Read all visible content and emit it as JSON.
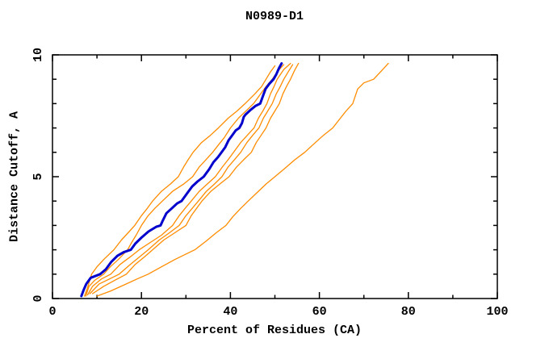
{
  "chart": {
    "title": "N0989-D1",
    "xlabel": "Percent of Residues (CA)",
    "ylabel": "Distance Cutoff, A"
  },
  "chart_data": {
    "type": "line",
    "title": "N0989-D1",
    "xlabel": "Percent of Residues (CA)",
    "ylabel": "Distance Cutoff, A",
    "xlim": [
      0,
      100
    ],
    "ylim": [
      0,
      10
    ],
    "x_major_ticks": [
      0,
      20,
      40,
      60,
      80,
      100
    ],
    "x_minor_step": 10,
    "y_major_ticks": [
      0,
      5,
      10
    ],
    "y_minor_step": 1,
    "grid": false,
    "legend": "none",
    "colors": {
      "highlight_series": "#0000cd",
      "other_series": "#ff8c00",
      "axis": "#000000",
      "background": "#ffffff"
    },
    "series": [
      {
        "name": "orange-1",
        "color": "#ff8c00",
        "width": 1.3,
        "points": [
          [
            7.2,
            0.1
          ],
          [
            7.8,
            0.4
          ],
          [
            8.8,
            1
          ],
          [
            10,
            1.3
          ],
          [
            11.5,
            1.6
          ],
          [
            13.8,
            2
          ],
          [
            15.5,
            2.4
          ],
          [
            17,
            2.7
          ],
          [
            18.5,
            3
          ],
          [
            20,
            3.4
          ],
          [
            21.3,
            3.7
          ],
          [
            22.5,
            4
          ],
          [
            24.5,
            4.4
          ],
          [
            26.5,
            4.7
          ],
          [
            28.3,
            5
          ],
          [
            29.5,
            5.4
          ],
          [
            30.5,
            5.7
          ],
          [
            31.6,
            6
          ],
          [
            33.5,
            6.4
          ],
          [
            35.5,
            6.7
          ],
          [
            37.3,
            7
          ],
          [
            39.5,
            7.4
          ],
          [
            41.5,
            7.7
          ],
          [
            43.3,
            8
          ],
          [
            45.5,
            8.4
          ],
          [
            47,
            8.7
          ],
          [
            48,
            9
          ],
          [
            49,
            9.3
          ],
          [
            50,
            9.55
          ]
        ]
      },
      {
        "name": "orange-2",
        "color": "#ff8c00",
        "width": 1.3,
        "points": [
          [
            7.5,
            0.1
          ],
          [
            8.2,
            0.5
          ],
          [
            9.5,
            0.75
          ],
          [
            11.5,
            1
          ],
          [
            13,
            1.3
          ],
          [
            14.8,
            1.6
          ],
          [
            16.9,
            2
          ],
          [
            17.8,
            2.3
          ],
          [
            18.8,
            2.6
          ],
          [
            20,
            3
          ],
          [
            21.5,
            3.4
          ],
          [
            23,
            3.7
          ],
          [
            24.7,
            4
          ],
          [
            27,
            4.4
          ],
          [
            29.5,
            4.7
          ],
          [
            31.5,
            5
          ],
          [
            33,
            5.4
          ],
          [
            34.5,
            5.7
          ],
          [
            36,
            6
          ],
          [
            37.3,
            6.3
          ],
          [
            38.6,
            6.6
          ],
          [
            40,
            7
          ],
          [
            41.8,
            7.4
          ],
          [
            43.5,
            7.7
          ],
          [
            45.2,
            8
          ],
          [
            46.8,
            8.4
          ],
          [
            48,
            8.7
          ],
          [
            49.4,
            9
          ],
          [
            50.5,
            9.3
          ],
          [
            52,
            9.6
          ]
        ]
      },
      {
        "name": "orange-3",
        "color": "#ff8c00",
        "width": 1.3,
        "points": [
          [
            7.9,
            0.15
          ],
          [
            9,
            0.5
          ],
          [
            11,
            0.8
          ],
          [
            13.1,
            1
          ],
          [
            15.2,
            1.4
          ],
          [
            17.4,
            1.7
          ],
          [
            19.5,
            2
          ],
          [
            22,
            2.3
          ],
          [
            24.5,
            2.6
          ],
          [
            27,
            3
          ],
          [
            28.5,
            3.4
          ],
          [
            29.8,
            3.7
          ],
          [
            31.2,
            4
          ],
          [
            33,
            4.4
          ],
          [
            34.8,
            4.7
          ],
          [
            36.6,
            5
          ],
          [
            38.2,
            5.4
          ],
          [
            39.5,
            5.7
          ],
          [
            40.7,
            6
          ],
          [
            42.3,
            6.4
          ],
          [
            43.8,
            6.7
          ],
          [
            45.3,
            7
          ],
          [
            46.3,
            7.4
          ],
          [
            47.3,
            7.7
          ],
          [
            48.2,
            8
          ],
          [
            49,
            8.4
          ],
          [
            49.8,
            8.7
          ],
          [
            50.5,
            9
          ],
          [
            52,
            9.4
          ],
          [
            53.5,
            9.65
          ]
        ]
      },
      {
        "name": "orange-4",
        "color": "#ff8c00",
        "width": 1.3,
        "points": [
          [
            8.4,
            0.2
          ],
          [
            10.5,
            0.6
          ],
          [
            12.8,
            0.8
          ],
          [
            15,
            1
          ],
          [
            17.5,
            1.4
          ],
          [
            19.5,
            1.7
          ],
          [
            21.5,
            2
          ],
          [
            24,
            2.4
          ],
          [
            26.3,
            2.7
          ],
          [
            28.5,
            3
          ],
          [
            30,
            3.4
          ],
          [
            31.4,
            3.7
          ],
          [
            32.8,
            4
          ],
          [
            34.6,
            4.4
          ],
          [
            36.4,
            4.7
          ],
          [
            38.1,
            5
          ],
          [
            39.5,
            5.4
          ],
          [
            40.9,
            5.7
          ],
          [
            42.3,
            6
          ],
          [
            43.7,
            6.4
          ],
          [
            45,
            6.7
          ],
          [
            46.4,
            7
          ],
          [
            47.4,
            7.4
          ],
          [
            48.4,
            7.7
          ],
          [
            49.4,
            8
          ],
          [
            50.3,
            8.4
          ],
          [
            51.2,
            8.7
          ],
          [
            52,
            9
          ],
          [
            53,
            9.3
          ],
          [
            54,
            9.6
          ]
        ]
      },
      {
        "name": "orange-5",
        "color": "#ff8c00",
        "width": 1.3,
        "points": [
          [
            9,
            0.2
          ],
          [
            11.5,
            0.5
          ],
          [
            14,
            0.75
          ],
          [
            16.6,
            1
          ],
          [
            18.6,
            1.4
          ],
          [
            20.6,
            1.7
          ],
          [
            22.5,
            2
          ],
          [
            25,
            2.4
          ],
          [
            27.5,
            2.7
          ],
          [
            30,
            3
          ],
          [
            31.2,
            3.4
          ],
          [
            32.4,
            3.7
          ],
          [
            33.6,
            4
          ],
          [
            35.6,
            4.4
          ],
          [
            37.6,
            4.7
          ],
          [
            39.7,
            5
          ],
          [
            41.4,
            5.4
          ],
          [
            43,
            5.7
          ],
          [
            44.7,
            6
          ],
          [
            45.8,
            6.4
          ],
          [
            46.9,
            6.7
          ],
          [
            48,
            7
          ],
          [
            49,
            7.4
          ],
          [
            50,
            7.7
          ],
          [
            51,
            8
          ],
          [
            51.8,
            8.4
          ],
          [
            52.6,
            8.7
          ],
          [
            53.5,
            9
          ],
          [
            54.4,
            9.35
          ],
          [
            55.3,
            9.65
          ]
        ]
      },
      {
        "name": "orange-6",
        "color": "#ff8c00",
        "width": 1.3,
        "points": [
          [
            10,
            0.1
          ],
          [
            13,
            0.3
          ],
          [
            16,
            0.55
          ],
          [
            19,
            0.8
          ],
          [
            21.5,
            1
          ],
          [
            24.5,
            1.3
          ],
          [
            27.5,
            1.6
          ],
          [
            32,
            2
          ],
          [
            34.5,
            2.35
          ],
          [
            36.8,
            2.7
          ],
          [
            39,
            3
          ],
          [
            40.5,
            3.35
          ],
          [
            42.3,
            3.7
          ],
          [
            44,
            4
          ],
          [
            46,
            4.35
          ],
          [
            48,
            4.7
          ],
          [
            50,
            5
          ],
          [
            52.3,
            5.35
          ],
          [
            54.5,
            5.7
          ],
          [
            56.7,
            6
          ],
          [
            58.8,
            6.35
          ],
          [
            60.9,
            6.7
          ],
          [
            63,
            7
          ],
          [
            64.5,
            7.35
          ],
          [
            66,
            7.7
          ],
          [
            67.5,
            8
          ],
          [
            68.6,
            8.6
          ],
          [
            70,
            8.85
          ],
          [
            72.2,
            9
          ],
          [
            74,
            9.35
          ],
          [
            75.5,
            9.65
          ]
        ]
      },
      {
        "name": "blue-main",
        "color": "#0000cd",
        "width": 3,
        "points": [
          [
            6.5,
            0.1
          ],
          [
            7,
            0.35
          ],
          [
            7.6,
            0.6
          ],
          [
            8.6,
            0.85
          ],
          [
            10.7,
            1
          ],
          [
            12,
            1.2
          ],
          [
            13.2,
            1.5
          ],
          [
            14.6,
            1.75
          ],
          [
            16,
            1.9
          ],
          [
            17.6,
            2
          ],
          [
            18.6,
            2.25
          ],
          [
            20,
            2.5
          ],
          [
            21.6,
            2.75
          ],
          [
            23.4,
            2.95
          ],
          [
            24.3,
            3
          ],
          [
            24.8,
            3.2
          ],
          [
            25.6,
            3.5
          ],
          [
            26.8,
            3.7
          ],
          [
            28,
            3.9
          ],
          [
            29,
            4
          ],
          [
            30.2,
            4.3
          ],
          [
            31.4,
            4.6
          ],
          [
            32.6,
            4.8
          ],
          [
            34,
            5
          ],
          [
            35.2,
            5.3
          ],
          [
            36.2,
            5.6
          ],
          [
            37.2,
            5.8
          ],
          [
            38,
            6
          ],
          [
            38.8,
            6.2
          ],
          [
            39.6,
            6.5
          ],
          [
            40.4,
            6.7
          ],
          [
            41.2,
            6.9
          ],
          [
            42,
            7
          ],
          [
            42.6,
            7.2
          ],
          [
            43,
            7.45
          ],
          [
            43.4,
            7.55
          ],
          [
            44.6,
            7.75
          ],
          [
            45.6,
            7.9
          ],
          [
            46.7,
            8
          ],
          [
            47.3,
            8.3
          ],
          [
            47.9,
            8.6
          ],
          [
            48.7,
            8.8
          ],
          [
            49.7,
            9
          ],
          [
            50.3,
            9.2
          ],
          [
            50.9,
            9.45
          ],
          [
            51.5,
            9.65
          ]
        ]
      }
    ]
  }
}
